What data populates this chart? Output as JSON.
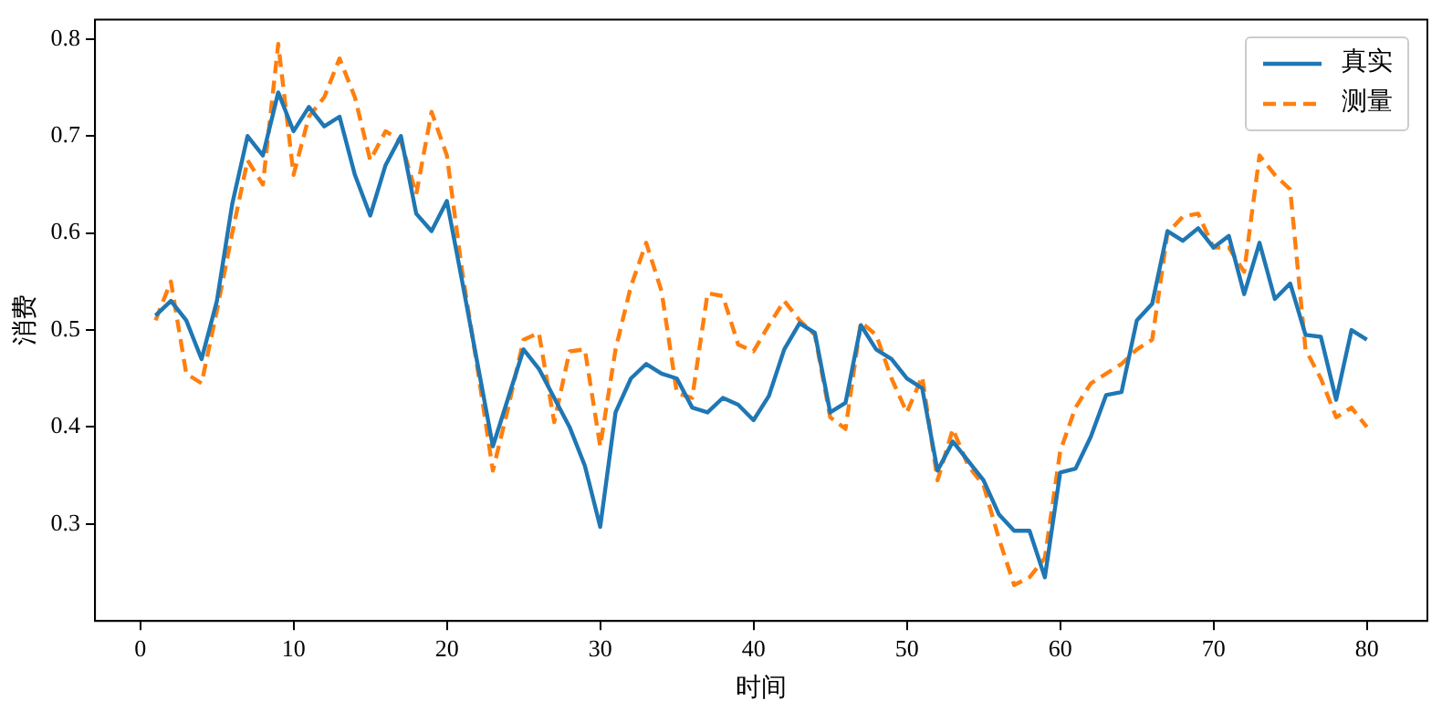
{
  "chart_data": {
    "type": "line",
    "xlabel": "时间",
    "ylabel": "消费",
    "x": [
      1,
      2,
      3,
      4,
      5,
      6,
      7,
      8,
      9,
      10,
      11,
      12,
      13,
      14,
      15,
      16,
      17,
      18,
      19,
      20,
      21,
      22,
      23,
      24,
      25,
      26,
      27,
      28,
      29,
      30,
      31,
      32,
      33,
      34,
      35,
      36,
      37,
      38,
      39,
      40,
      41,
      42,
      43,
      44,
      45,
      46,
      47,
      48,
      49,
      50,
      51,
      52,
      53,
      54,
      55,
      56,
      57,
      58,
      59,
      60,
      61,
      62,
      63,
      64,
      65,
      66,
      67,
      68,
      69,
      70,
      71,
      72,
      73,
      74,
      75,
      76,
      77,
      78,
      79,
      80
    ],
    "series": [
      {
        "name": "真实",
        "color": "#1f77b4",
        "line_style": "solid",
        "values": [
          0.515,
          0.53,
          0.51,
          0.47,
          0.53,
          0.63,
          0.7,
          0.68,
          0.745,
          0.705,
          0.73,
          0.71,
          0.72,
          0.66,
          0.618,
          0.67,
          0.7,
          0.62,
          0.602,
          0.633,
          0.55,
          0.465,
          0.38,
          0.43,
          0.48,
          0.46,
          0.43,
          0.4,
          0.36,
          0.297,
          0.415,
          0.45,
          0.465,
          0.455,
          0.45,
          0.42,
          0.415,
          0.43,
          0.423,
          0.407,
          0.432,
          0.48,
          0.507,
          0.497,
          0.415,
          0.425,
          0.505,
          0.48,
          0.47,
          0.45,
          0.44,
          0.355,
          0.385,
          0.365,
          0.345,
          0.31,
          0.293,
          0.293,
          0.245,
          0.353,
          0.357,
          0.39,
          0.433,
          0.436,
          0.51,
          0.527,
          0.602,
          0.592,
          0.605,
          0.585,
          0.597,
          0.537,
          0.59,
          0.532,
          0.548,
          0.495,
          0.493,
          0.428,
          0.5,
          0.49
        ]
      },
      {
        "name": "测量",
        "color": "#ff7f0e",
        "line_style": "dashed",
        "values": [
          0.51,
          0.55,
          0.455,
          0.445,
          0.52,
          0.6,
          0.675,
          0.65,
          0.795,
          0.66,
          0.72,
          0.74,
          0.78,
          0.74,
          0.675,
          0.705,
          0.695,
          0.64,
          0.725,
          0.68,
          0.56,
          0.46,
          0.355,
          0.42,
          0.49,
          0.497,
          0.405,
          0.478,
          0.48,
          0.38,
          0.48,
          0.545,
          0.59,
          0.54,
          0.435,
          0.43,
          0.538,
          0.535,
          0.485,
          0.478,
          0.505,
          0.53,
          0.51,
          0.495,
          0.41,
          0.398,
          0.508,
          0.495,
          0.45,
          0.415,
          0.452,
          0.345,
          0.398,
          0.36,
          0.34,
          0.285,
          0.237,
          0.245,
          0.265,
          0.375,
          0.42,
          0.445,
          0.455,
          0.465,
          0.48,
          0.49,
          0.6,
          0.617,
          0.62,
          0.585,
          0.585,
          0.56,
          0.68,
          0.66,
          0.645,
          0.48,
          0.45,
          0.41,
          0.42,
          0.4
        ]
      }
    ],
    "xlim": [
      -2.95,
      83.95
    ],
    "ylim": [
      0.2,
      0.82
    ],
    "xticks": [
      0,
      10,
      20,
      30,
      40,
      50,
      60,
      70,
      80
    ],
    "yticks": [
      0.3,
      0.4,
      0.5,
      0.6,
      0.7,
      0.8
    ],
    "grid": false,
    "legend": "top right",
    "marker": "none"
  }
}
